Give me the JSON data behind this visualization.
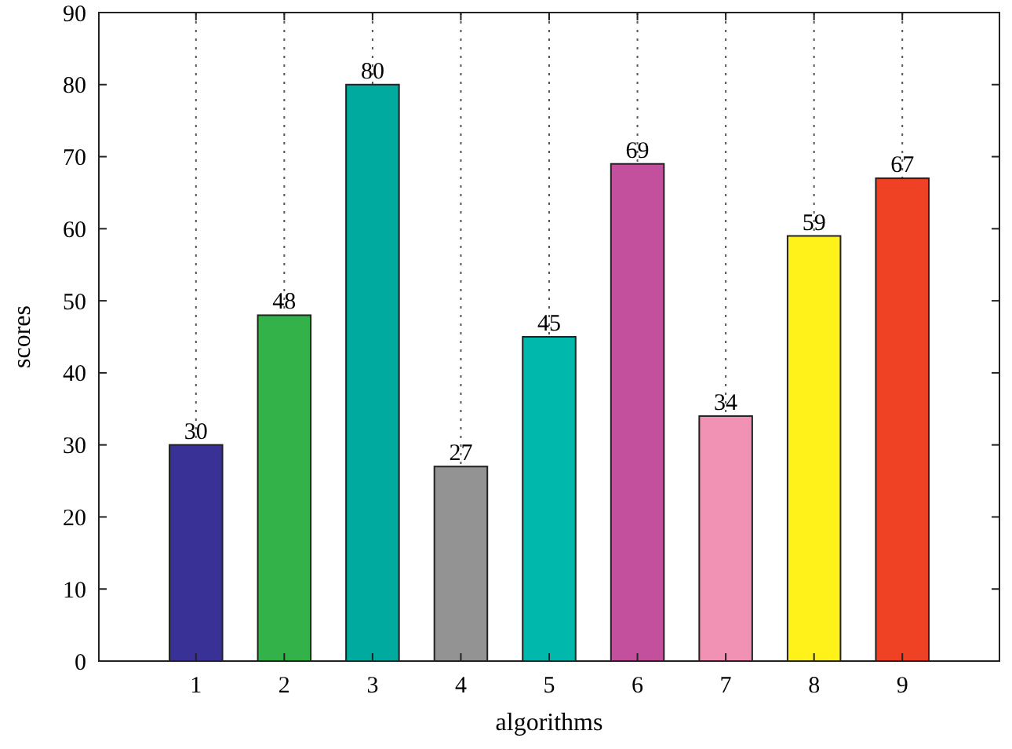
{
  "chart_data": {
    "type": "bar",
    "xlabel": "algorithms",
    "ylabel": "scores",
    "categories": [
      "1",
      "2",
      "3",
      "4",
      "5",
      "6",
      "7",
      "8",
      "9"
    ],
    "values": [
      30,
      48,
      80,
      27,
      45,
      69,
      34,
      59,
      67
    ],
    "colors": [
      "#3a3196",
      "#33b24a",
      "#00aa9f",
      "#939393",
      "#00b8ab",
      "#c2509c",
      "#f192b5",
      "#fff21a",
      "#ef4124"
    ],
    "ylim": [
      0,
      90
    ],
    "yticks": [
      0,
      10,
      20,
      30,
      40,
      50,
      60,
      70,
      80,
      90
    ],
    "grid": "x",
    "data_labels": true
  }
}
